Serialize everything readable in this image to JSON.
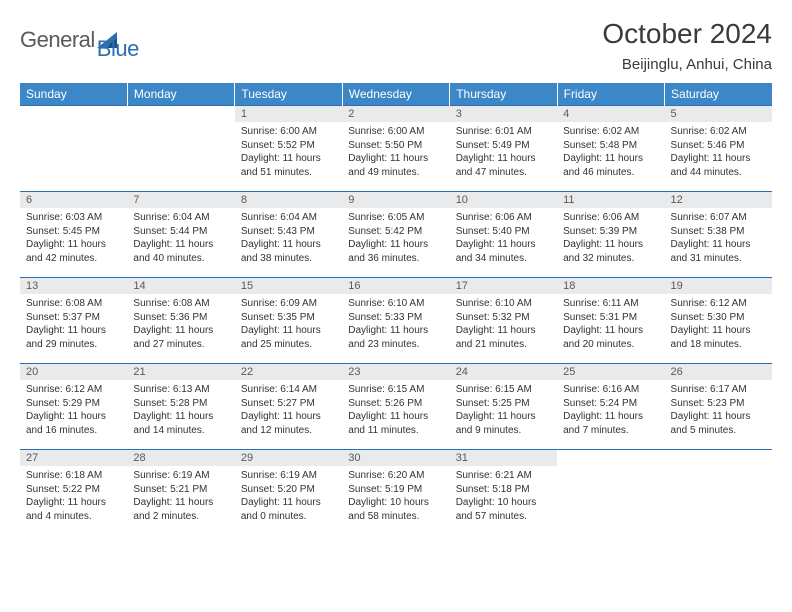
{
  "logo": {
    "text1": "General",
    "text2": "Blue"
  },
  "title": "October 2024",
  "location": "Beijinglu, Anhui, China",
  "headerBg": "#3c87c7",
  "borderColor": "#2d6fb3",
  "dayBg": "#e9eaeb",
  "weekdays": [
    "Sunday",
    "Monday",
    "Tuesday",
    "Wednesday",
    "Thursday",
    "Friday",
    "Saturday"
  ],
  "firstDayOffset": 2,
  "days": [
    {
      "n": 1,
      "sunrise": "6:00 AM",
      "sunset": "5:52 PM",
      "daylight": "11 hours and 51 minutes."
    },
    {
      "n": 2,
      "sunrise": "6:00 AM",
      "sunset": "5:50 PM",
      "daylight": "11 hours and 49 minutes."
    },
    {
      "n": 3,
      "sunrise": "6:01 AM",
      "sunset": "5:49 PM",
      "daylight": "11 hours and 47 minutes."
    },
    {
      "n": 4,
      "sunrise": "6:02 AM",
      "sunset": "5:48 PM",
      "daylight": "11 hours and 46 minutes."
    },
    {
      "n": 5,
      "sunrise": "6:02 AM",
      "sunset": "5:46 PM",
      "daylight": "11 hours and 44 minutes."
    },
    {
      "n": 6,
      "sunrise": "6:03 AM",
      "sunset": "5:45 PM",
      "daylight": "11 hours and 42 minutes."
    },
    {
      "n": 7,
      "sunrise": "6:04 AM",
      "sunset": "5:44 PM",
      "daylight": "11 hours and 40 minutes."
    },
    {
      "n": 8,
      "sunrise": "6:04 AM",
      "sunset": "5:43 PM",
      "daylight": "11 hours and 38 minutes."
    },
    {
      "n": 9,
      "sunrise": "6:05 AM",
      "sunset": "5:42 PM",
      "daylight": "11 hours and 36 minutes."
    },
    {
      "n": 10,
      "sunrise": "6:06 AM",
      "sunset": "5:40 PM",
      "daylight": "11 hours and 34 minutes."
    },
    {
      "n": 11,
      "sunrise": "6:06 AM",
      "sunset": "5:39 PM",
      "daylight": "11 hours and 32 minutes."
    },
    {
      "n": 12,
      "sunrise": "6:07 AM",
      "sunset": "5:38 PM",
      "daylight": "11 hours and 31 minutes."
    },
    {
      "n": 13,
      "sunrise": "6:08 AM",
      "sunset": "5:37 PM",
      "daylight": "11 hours and 29 minutes."
    },
    {
      "n": 14,
      "sunrise": "6:08 AM",
      "sunset": "5:36 PM",
      "daylight": "11 hours and 27 minutes."
    },
    {
      "n": 15,
      "sunrise": "6:09 AM",
      "sunset": "5:35 PM",
      "daylight": "11 hours and 25 minutes."
    },
    {
      "n": 16,
      "sunrise": "6:10 AM",
      "sunset": "5:33 PM",
      "daylight": "11 hours and 23 minutes."
    },
    {
      "n": 17,
      "sunrise": "6:10 AM",
      "sunset": "5:32 PM",
      "daylight": "11 hours and 21 minutes."
    },
    {
      "n": 18,
      "sunrise": "6:11 AM",
      "sunset": "5:31 PM",
      "daylight": "11 hours and 20 minutes."
    },
    {
      "n": 19,
      "sunrise": "6:12 AM",
      "sunset": "5:30 PM",
      "daylight": "11 hours and 18 minutes."
    },
    {
      "n": 20,
      "sunrise": "6:12 AM",
      "sunset": "5:29 PM",
      "daylight": "11 hours and 16 minutes."
    },
    {
      "n": 21,
      "sunrise": "6:13 AM",
      "sunset": "5:28 PM",
      "daylight": "11 hours and 14 minutes."
    },
    {
      "n": 22,
      "sunrise": "6:14 AM",
      "sunset": "5:27 PM",
      "daylight": "11 hours and 12 minutes."
    },
    {
      "n": 23,
      "sunrise": "6:15 AM",
      "sunset": "5:26 PM",
      "daylight": "11 hours and 11 minutes."
    },
    {
      "n": 24,
      "sunrise": "6:15 AM",
      "sunset": "5:25 PM",
      "daylight": "11 hours and 9 minutes."
    },
    {
      "n": 25,
      "sunrise": "6:16 AM",
      "sunset": "5:24 PM",
      "daylight": "11 hours and 7 minutes."
    },
    {
      "n": 26,
      "sunrise": "6:17 AM",
      "sunset": "5:23 PM",
      "daylight": "11 hours and 5 minutes."
    },
    {
      "n": 27,
      "sunrise": "6:18 AM",
      "sunset": "5:22 PM",
      "daylight": "11 hours and 4 minutes."
    },
    {
      "n": 28,
      "sunrise": "6:19 AM",
      "sunset": "5:21 PM",
      "daylight": "11 hours and 2 minutes."
    },
    {
      "n": 29,
      "sunrise": "6:19 AM",
      "sunset": "5:20 PM",
      "daylight": "11 hours and 0 minutes."
    },
    {
      "n": 30,
      "sunrise": "6:20 AM",
      "sunset": "5:19 PM",
      "daylight": "10 hours and 58 minutes."
    },
    {
      "n": 31,
      "sunrise": "6:21 AM",
      "sunset": "5:18 PM",
      "daylight": "10 hours and 57 minutes."
    }
  ],
  "labels": {
    "sunrise": "Sunrise:",
    "sunset": "Sunset:",
    "daylight": "Daylight:"
  }
}
